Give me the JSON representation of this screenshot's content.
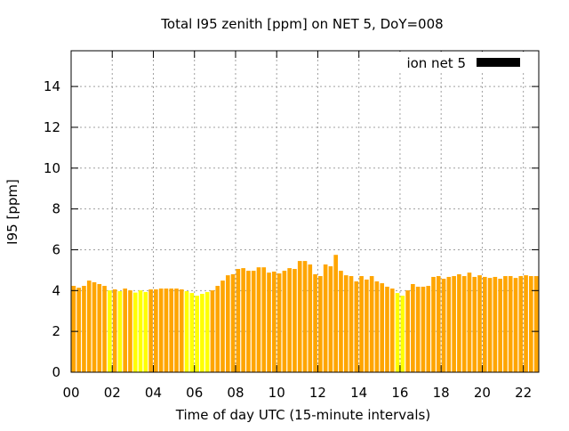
{
  "chart_data": {
    "type": "bar",
    "title": "Total I95 zenith [ppm] on NET 5, DoY=008",
    "xlabel": "Time of day UTC (15-minute intervals)",
    "ylabel": "I95 [ppm]",
    "xlim": [
      0,
      22.75
    ],
    "ylim": [
      0,
      15.75
    ],
    "xticks": [
      "00",
      "02",
      "04",
      "06",
      "08",
      "10",
      "12",
      "14",
      "16",
      "18",
      "20",
      "22"
    ],
    "xtick_values": [
      0,
      2,
      4,
      6,
      8,
      10,
      12,
      14,
      16,
      18,
      20,
      22
    ],
    "yticks": [
      0,
      2,
      4,
      6,
      8,
      10,
      12,
      14
    ],
    "grid": true,
    "legend": {
      "label": "ion net 5",
      "position": "top-right",
      "color": "#000000"
    },
    "colors": {
      "orange": "#ffa500",
      "yellow": "#ffff00"
    },
    "interval_hours": 0.25,
    "values": [
      4.23,
      4.14,
      4.23,
      4.49,
      4.41,
      4.32,
      4.23,
      4.01,
      4.06,
      3.97,
      4.1,
      4.01,
      3.9,
      4.01,
      3.93,
      4.06,
      4.06,
      4.1,
      4.1,
      4.1,
      4.1,
      4.06,
      3.97,
      3.88,
      3.75,
      3.84,
      3.93,
      4.01,
      4.23,
      4.49,
      4.75,
      4.8,
      5.06,
      5.1,
      4.97,
      4.97,
      5.14,
      5.14,
      4.88,
      4.93,
      4.84,
      4.97,
      5.1,
      5.06,
      5.45,
      5.45,
      5.28,
      4.8,
      4.71,
      5.28,
      5.19,
      5.75,
      4.97,
      4.75,
      4.71,
      4.45,
      4.71,
      4.54,
      4.71,
      4.45,
      4.36,
      4.19,
      4.1,
      3.88,
      3.75,
      4.01,
      4.32,
      4.19,
      4.19,
      4.23,
      4.67,
      4.71,
      4.58,
      4.67,
      4.71,
      4.8,
      4.71,
      4.88,
      4.67,
      4.75,
      4.67,
      4.62,
      4.67,
      4.58,
      4.71,
      4.71,
      4.62,
      4.71,
      4.75,
      4.71,
      4.71
    ],
    "bar_colors": [
      "orange",
      "orange",
      "orange",
      "orange",
      "orange",
      "orange",
      "orange",
      "yellow",
      "orange",
      "yellow",
      "orange",
      "orange",
      "yellow",
      "yellow",
      "yellow",
      "orange",
      "orange",
      "orange",
      "orange",
      "orange",
      "orange",
      "orange",
      "yellow",
      "yellow",
      "yellow",
      "yellow",
      "yellow",
      "orange",
      "orange",
      "orange",
      "orange",
      "orange",
      "orange",
      "orange",
      "orange",
      "orange",
      "orange",
      "orange",
      "orange",
      "orange",
      "orange",
      "orange",
      "orange",
      "orange",
      "orange",
      "orange",
      "orange",
      "orange",
      "orange",
      "orange",
      "orange",
      "orange",
      "orange",
      "orange",
      "orange",
      "orange",
      "orange",
      "orange",
      "orange",
      "orange",
      "orange",
      "orange",
      "orange",
      "yellow",
      "yellow",
      "orange",
      "orange",
      "orange",
      "orange",
      "orange",
      "orange",
      "orange",
      "orange",
      "orange",
      "orange",
      "orange",
      "orange",
      "orange",
      "orange",
      "orange",
      "orange",
      "orange",
      "orange",
      "orange",
      "orange",
      "orange",
      "orange",
      "orange",
      "orange",
      "orange",
      "orange"
    ]
  }
}
